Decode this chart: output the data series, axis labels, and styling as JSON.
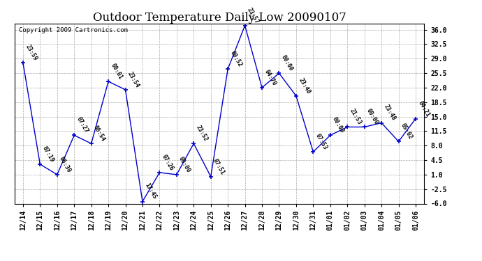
{
  "title": "Outdoor Temperature Daily Low 20090107",
  "copyright": "Copyright 2009 Cartronics.com",
  "x_labels": [
    "12/14",
    "12/15",
    "12/16",
    "12/17",
    "12/18",
    "12/19",
    "12/20",
    "12/21",
    "12/22",
    "12/23",
    "12/24",
    "12/25",
    "12/26",
    "12/27",
    "12/28",
    "12/29",
    "12/30",
    "12/31",
    "01/01",
    "01/02",
    "01/03",
    "01/04",
    "01/05",
    "01/06"
  ],
  "y_values": [
    28.0,
    3.5,
    1.0,
    10.5,
    8.5,
    23.5,
    21.5,
    -5.5,
    1.5,
    1.0,
    8.5,
    0.5,
    26.5,
    37.0,
    22.0,
    25.5,
    20.0,
    6.5,
    10.5,
    12.5,
    12.5,
    13.5,
    9.0,
    14.5
  ],
  "point_labels": [
    "23:59",
    "07:19",
    "06:30",
    "07:27",
    "06:54",
    "00:01",
    "23:54",
    "17:45",
    "07:26",
    "00:00",
    "23:52",
    "07:51",
    "00:52",
    "23:57",
    "04:70",
    "00:00",
    "23:40",
    "07:53",
    "00:00",
    "21:53",
    "00:00",
    "23:48",
    "05:02",
    "04:21"
  ],
  "line_color": "#0000cc",
  "marker_color": "#0000cc",
  "bg_color": "#ffffff",
  "grid_color": "#aaaaaa",
  "ylim": [
    -6.0,
    37.5
  ],
  "yticks": [
    -6.0,
    -2.5,
    1.0,
    4.5,
    8.0,
    11.5,
    15.0,
    18.5,
    22.0,
    25.5,
    29.0,
    32.5,
    36.0
  ],
  "title_fontsize": 12,
  "xlabel_fontsize": 7,
  "ylabel_fontsize": 7,
  "point_label_fontsize": 6,
  "copyright_fontsize": 6.5
}
